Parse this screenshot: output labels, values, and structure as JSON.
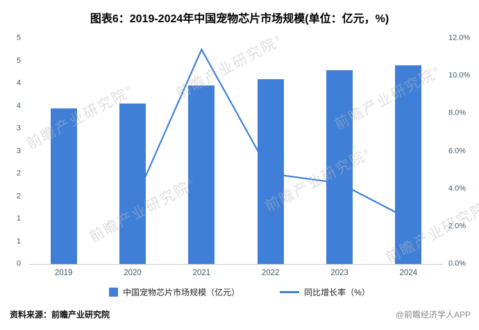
{
  "chart_data": {
    "type": "bar",
    "combo": "bar+line",
    "title": "图表6：2019-2024年中国宠物芯片市场规模(单位：亿元，%)",
    "categories": [
      "2019",
      "2020",
      "2021",
      "2022",
      "2023",
      "2024"
    ],
    "series": [
      {
        "name": "中国宠物芯片市场规模（亿元）",
        "type": "bar",
        "axis": "left",
        "values": [
          3.45,
          3.55,
          3.95,
          4.1,
          4.3,
          4.4
        ]
      },
      {
        "name": "同比增长率（%）",
        "type": "line",
        "axis": "right",
        "values": [
          null,
          3.1,
          11.4,
          4.8,
          4.3,
          2.4
        ]
      }
    ],
    "left_axis": {
      "min": 0,
      "max": 5,
      "ticks": [
        "5",
        "5",
        "4",
        "4",
        "3",
        "3",
        "2",
        "2",
        "1",
        "1",
        "0"
      ]
    },
    "right_axis": {
      "min": 0,
      "max": 12,
      "ticks": [
        "12.0%",
        "10.0%",
        "8.0%",
        "6.0%",
        "4.0%",
        "2.0%",
        "0.0%"
      ]
    },
    "gridlines": false,
    "legend_position": "bottom",
    "colors": {
      "bar": "#3f7fd8",
      "line": "#3f7fd8",
      "tick_text": "#3d5a66",
      "axis_line": "#c9c9c9",
      "title_text": "#000000"
    }
  },
  "watermark": {
    "text": "前瞻产业研究院",
    "reg": "®"
  },
  "footer": {
    "source": "资料来源：前瞻产业研究院",
    "credit": "@前瞻经济学人APP"
  }
}
